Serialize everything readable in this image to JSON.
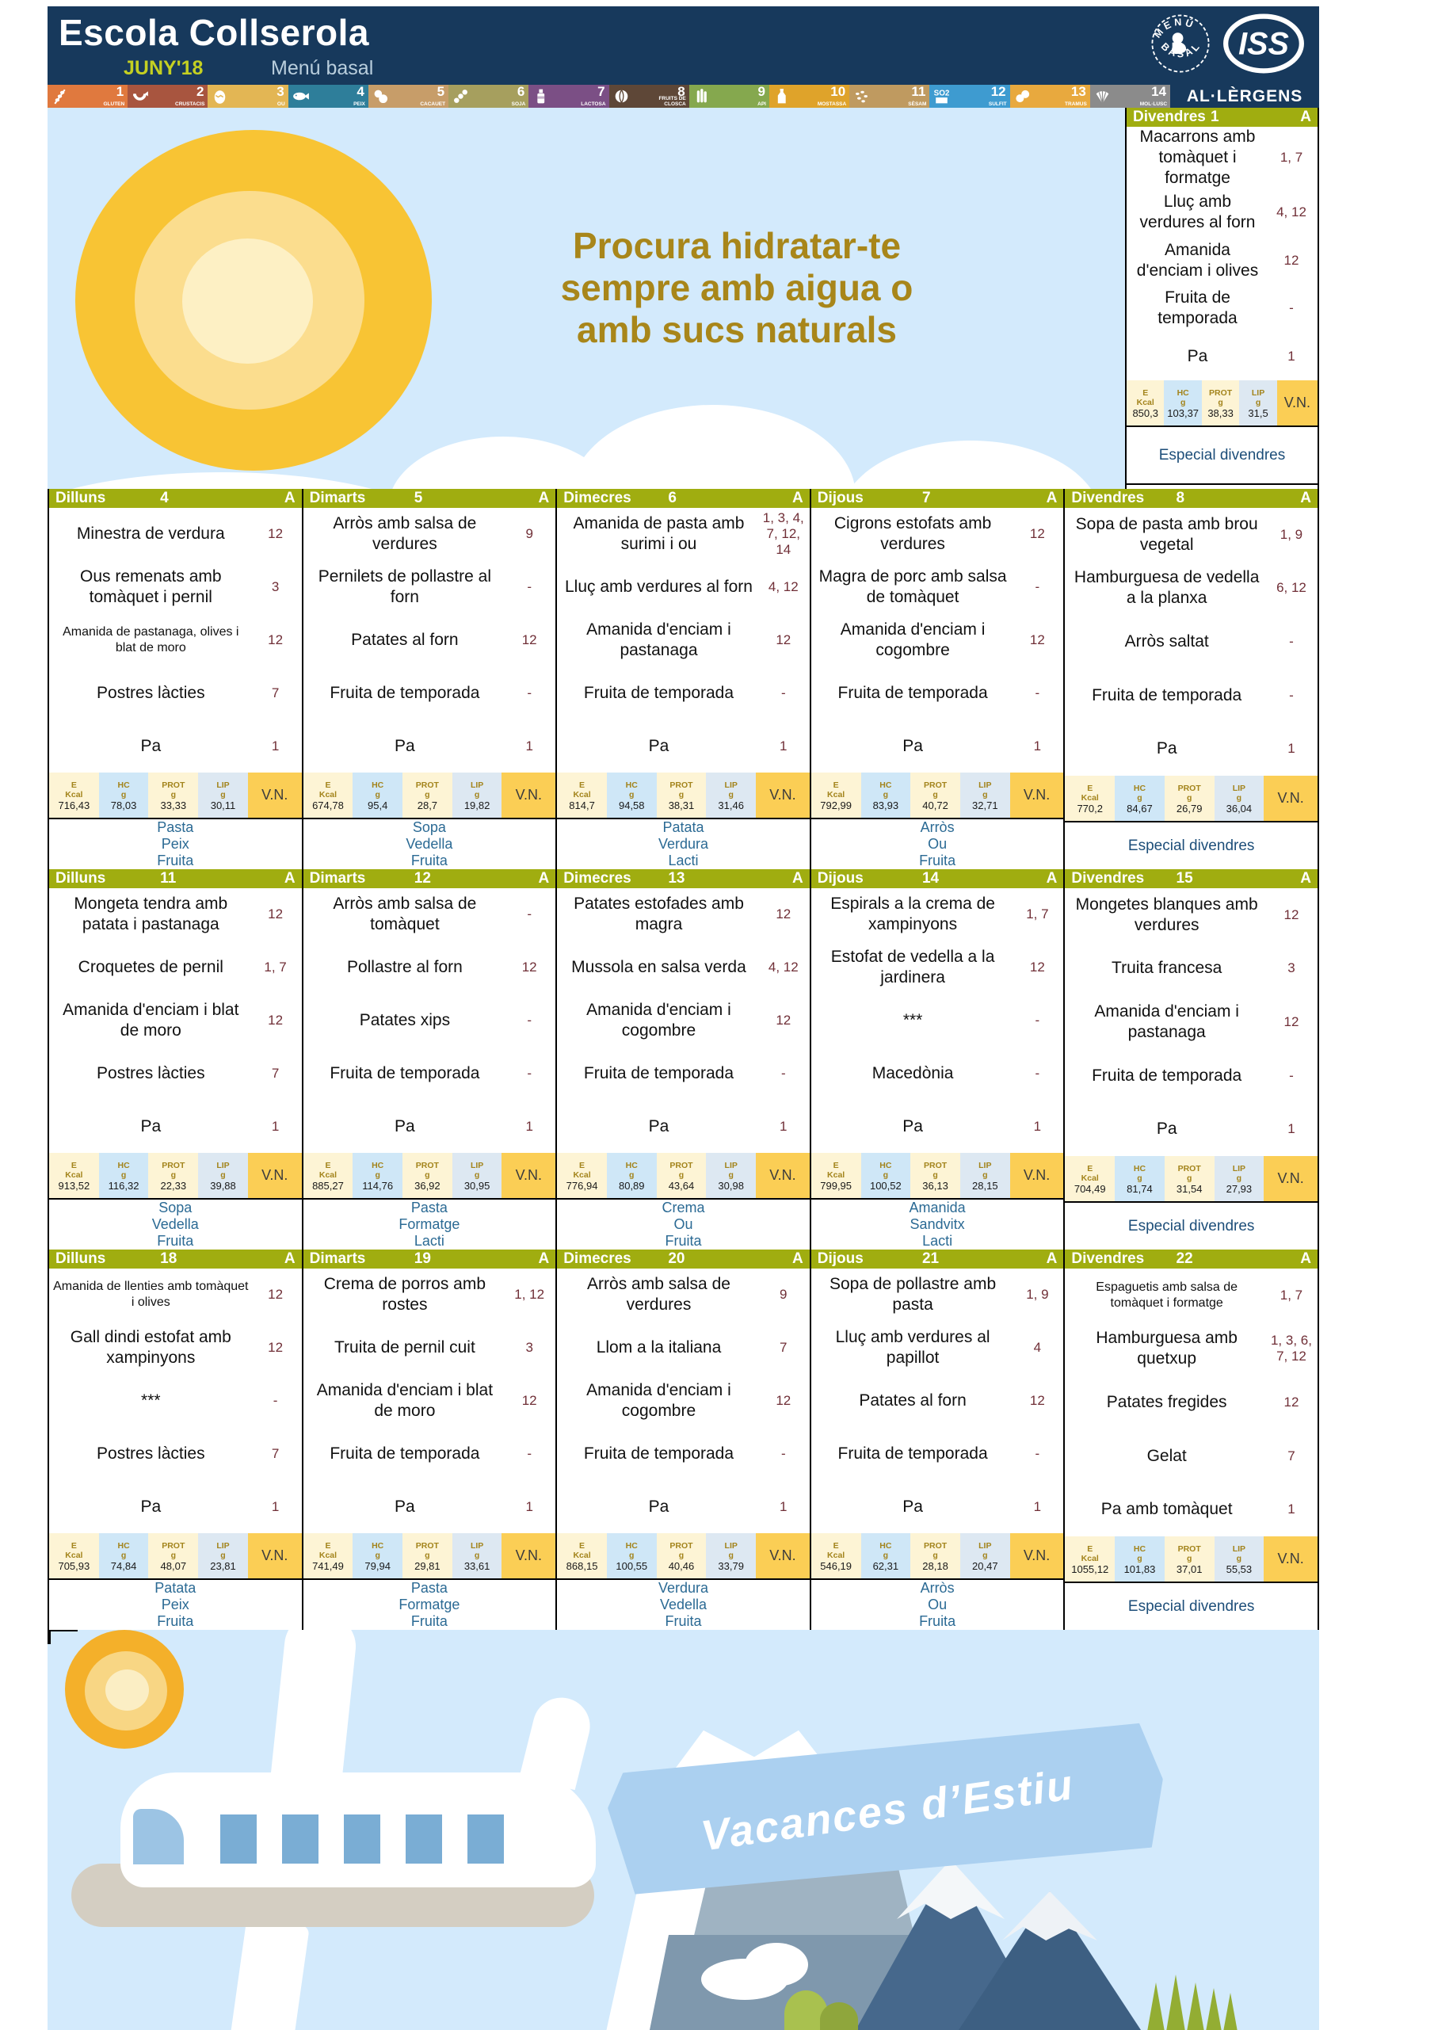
{
  "header": {
    "school": "Escola Collserola",
    "month": "JUNY'18",
    "menu_type": "Menú basal",
    "stamp_top": "MENÚ",
    "stamp_bottom": "BASAL",
    "brand": "ISS"
  },
  "palette": {
    "navy": "#17395c",
    "olive_header": "#a0ad10",
    "maroon_allergen": "#702f37",
    "footer_blue": "#2b6a94",
    "especial_blue": "#1d4e79",
    "vn_amber": "#fbce55",
    "cell_cream": "#fdf4d5",
    "cell_blue": "#cfe7f7",
    "sky": "#d3eafc",
    "hero_gold": "#a8861a"
  },
  "allergens": {
    "title": "AL·LÈRGENS",
    "items": [
      {
        "num": "1",
        "label": "GLUTEN",
        "icon": "wheat-icon",
        "color": "#e0793e"
      },
      {
        "num": "2",
        "label": "CRUSTACIS",
        "icon": "shrimp-icon",
        "color": "#a8553f"
      },
      {
        "num": "3",
        "label": "OU",
        "icon": "egg-icon",
        "color": "#e3b654"
      },
      {
        "num": "4",
        "label": "PEIX",
        "icon": "fish-icon",
        "color": "#2e7e9a"
      },
      {
        "num": "5",
        "label": "CACAUET",
        "icon": "peanut-icon",
        "color": "#c79d69"
      },
      {
        "num": "6",
        "label": "SOJA",
        "icon": "soy-icon",
        "color": "#a69f5e"
      },
      {
        "num": "7",
        "label": "LACTOSA",
        "icon": "milk-icon",
        "color": "#7b4f85"
      },
      {
        "num": "8",
        "label": "FRUITS DE CLOSCA",
        "icon": "nut-icon",
        "color": "#5e4737"
      },
      {
        "num": "9",
        "label": "API",
        "icon": "celery-icon",
        "color": "#85a84e"
      },
      {
        "num": "10",
        "label": "MOSTASSA",
        "icon": "mustard-icon",
        "color": "#dfa32a"
      },
      {
        "num": "11",
        "label": "SÈSAM",
        "icon": "sesame-icon",
        "color": "#bf9a60"
      },
      {
        "num": "12",
        "label": "SULFIT",
        "icon": "so2-icon",
        "color": "#3e9bd0"
      },
      {
        "num": "13",
        "label": "TRAMUS",
        "icon": "lupin-icon",
        "color": "#e8a93e"
      },
      {
        "num": "14",
        "label": "MOL·LUSC",
        "icon": "shell-icon",
        "color": "#8b8b8b"
      }
    ]
  },
  "hero": {
    "line1": "Procura hidratar-te",
    "line2": "sempre amb aigua o",
    "line3": "amb sucs naturals"
  },
  "vn_header": {
    "e": "E",
    "e_unit": "Kcal",
    "hc": "HC",
    "prot": "PROT",
    "lip": "LIP",
    "unit_g": "g",
    "vn": "V.N."
  },
  "friday1": {
    "day": "Divendres",
    "date": "1",
    "a": "A",
    "dishes": [
      {
        "name": "Macarrons amb tomàquet i formatge",
        "al": "1, 7"
      },
      {
        "name": "Lluç amb verdures al forn",
        "al": "4, 12"
      },
      {
        "name": "Amanida d'enciam i olives",
        "al": "12"
      },
      {
        "name": "Fruita de temporada",
        "al": "-"
      },
      {
        "name": "Pa",
        "al": "1"
      }
    ],
    "vn": {
      "e": "850,3",
      "hc": "103,37",
      "prot": "38,33",
      "lip": "31,5"
    },
    "footer": [
      "Especial divendres"
    ],
    "footer_special": true
  },
  "weeks": [
    {
      "days": [
        {
          "day": "Dilluns",
          "date": "4",
          "a": "A",
          "dishes": [
            {
              "name": "Minestra de verdura",
              "al": "12"
            },
            {
              "name": "Ous remenats amb tomàquet i pernil",
              "al": "3"
            },
            {
              "name": "Amanida de pastanaga, olives i blat de moro",
              "al": "12",
              "small": true
            },
            {
              "name": "Postres làcties",
              "al": "7"
            },
            {
              "name": "Pa",
              "al": "1"
            }
          ],
          "vn": {
            "e": "716,43",
            "hc": "78,03",
            "prot": "33,33",
            "lip": "30,11"
          },
          "footer": [
            "Pasta",
            "Peix",
            "Fruita"
          ]
        },
        {
          "day": "Dimarts",
          "date": "5",
          "a": "A",
          "dishes": [
            {
              "name": "Arròs amb salsa de verdures",
              "al": "9"
            },
            {
              "name": "Pernilets de pollastre al forn",
              "al": "-"
            },
            {
              "name": "Patates al forn",
              "al": "12"
            },
            {
              "name": "Fruita de temporada",
              "al": "-"
            },
            {
              "name": "Pa",
              "al": "1"
            }
          ],
          "vn": {
            "e": "674,78",
            "hc": "95,4",
            "prot": "28,7",
            "lip": "19,82"
          },
          "footer": [
            "Sopa",
            "Vedella",
            "Fruita"
          ]
        },
        {
          "day": "Dimecres",
          "date": "6",
          "a": "A",
          "dishes": [
            {
              "name": "Amanida de pasta amb surimi i ou",
              "al": "1, 3, 4, 7, 12, 14"
            },
            {
              "name": "Lluç amb verdures al forn",
              "al": "4, 12"
            },
            {
              "name": "Amanida d'enciam i pastanaga",
              "al": "12"
            },
            {
              "name": "Fruita de temporada",
              "al": "-"
            },
            {
              "name": "Pa",
              "al": "1"
            }
          ],
          "vn": {
            "e": "814,7",
            "hc": "94,58",
            "prot": "38,31",
            "lip": "31,46"
          },
          "footer": [
            "Patata",
            "Verdura",
            "Lacti"
          ]
        },
        {
          "day": "Dijous",
          "date": "7",
          "a": "A",
          "dishes": [
            {
              "name": "Cigrons estofats amb verdures",
              "al": "12"
            },
            {
              "name": "Magra de porc amb salsa de tomàquet",
              "al": "-"
            },
            {
              "name": "Amanida d'enciam i cogombre",
              "al": "12"
            },
            {
              "name": "Fruita de temporada",
              "al": "-"
            },
            {
              "name": "Pa",
              "al": "1"
            }
          ],
          "vn": {
            "e": "792,99",
            "hc": "83,93",
            "prot": "40,72",
            "lip": "32,71"
          },
          "footer": [
            "Arròs",
            "Ou",
            "Fruita"
          ]
        },
        {
          "day": "Divendres",
          "date": "8",
          "a": "A",
          "dishes": [
            {
              "name": "Sopa de pasta amb brou vegetal",
              "al": "1, 9"
            },
            {
              "name": "Hamburguesa de vedella a la planxa",
              "al": "6, 12"
            },
            {
              "name": "Arròs saltat",
              "al": "-"
            },
            {
              "name": "Fruita de temporada",
              "al": "-"
            },
            {
              "name": "Pa",
              "al": "1"
            }
          ],
          "vn": {
            "e": "770,2",
            "hc": "84,67",
            "prot": "26,79",
            "lip": "36,04"
          },
          "footer": [
            "Especial divendres"
          ],
          "footer_special": true
        }
      ]
    },
    {
      "days": [
        {
          "day": "Dilluns",
          "date": "11",
          "a": "A",
          "dishes": [
            {
              "name": "Mongeta tendra amb patata i pastanaga",
              "al": "12"
            },
            {
              "name": "Croquetes de pernil",
              "al": "1, 7"
            },
            {
              "name": "Amanida d'enciam i blat de moro",
              "al": "12"
            },
            {
              "name": "Postres làcties",
              "al": "7"
            },
            {
              "name": "Pa",
              "al": "1"
            }
          ],
          "vn": {
            "e": "913,52",
            "hc": "116,32",
            "prot": "22,33",
            "lip": "39,88"
          },
          "footer": [
            "Sopa",
            "Vedella",
            "Fruita"
          ]
        },
        {
          "day": "Dimarts",
          "date": "12",
          "a": "A",
          "dishes": [
            {
              "name": "Arròs amb salsa de tomàquet",
              "al": "-"
            },
            {
              "name": "Pollastre al forn",
              "al": "12"
            },
            {
              "name": "Patates xips",
              "al": "-"
            },
            {
              "name": "Fruita de temporada",
              "al": "-"
            },
            {
              "name": "Pa",
              "al": "1"
            }
          ],
          "vn": {
            "e": "885,27",
            "hc": "114,76",
            "prot": "36,92",
            "lip": "30,95"
          },
          "footer": [
            "Pasta",
            "Formatge",
            "Lacti"
          ]
        },
        {
          "day": "Dimecres",
          "date": "13",
          "a": "A",
          "dishes": [
            {
              "name": "Patates estofades amb magra",
              "al": "12"
            },
            {
              "name": "Mussola en salsa verda",
              "al": "4, 12"
            },
            {
              "name": "Amanida d'enciam i cogombre",
              "al": "12"
            },
            {
              "name": "Fruita de temporada",
              "al": "-"
            },
            {
              "name": "Pa",
              "al": "1"
            }
          ],
          "vn": {
            "e": "776,94",
            "hc": "80,89",
            "prot": "43,64",
            "lip": "30,98"
          },
          "footer": [
            "Crema",
            "Ou",
            "Fruita"
          ]
        },
        {
          "day": "Dijous",
          "date": "14",
          "a": "A",
          "dishes": [
            {
              "name": "Espirals a la crema de xampinyons",
              "al": "1, 7"
            },
            {
              "name": "Estofat de vedella a la jardinera",
              "al": "12"
            },
            {
              "name": "***",
              "al": "-"
            },
            {
              "name": "Macedònia",
              "al": "-"
            },
            {
              "name": "Pa",
              "al": "1"
            }
          ],
          "vn": {
            "e": "799,95",
            "hc": "100,52",
            "prot": "36,13",
            "lip": "28,15"
          },
          "footer": [
            "Amanida",
            "Sandvitx",
            "Lacti"
          ]
        },
        {
          "day": "Divendres",
          "date": "15",
          "a": "A",
          "dishes": [
            {
              "name": "Mongetes blanques amb verdures",
              "al": "12"
            },
            {
              "name": "Truita francesa",
              "al": "3"
            },
            {
              "name": "Amanida d'enciam i pastanaga",
              "al": "12"
            },
            {
              "name": "Fruita de temporada",
              "al": "-"
            },
            {
              "name": "Pa",
              "al": "1"
            }
          ],
          "vn": {
            "e": "704,49",
            "hc": "81,74",
            "prot": "31,54",
            "lip": "27,93"
          },
          "footer": [
            "Especial divendres"
          ],
          "footer_special": true
        }
      ]
    },
    {
      "days": [
        {
          "day": "Dilluns",
          "date": "18",
          "a": "A",
          "dishes": [
            {
              "name": "Amanida de llenties amb tomàquet i olives",
              "al": "12",
              "small": true
            },
            {
              "name": "Gall dindi estofat amb xampinyons",
              "al": "12"
            },
            {
              "name": "***",
              "al": "-"
            },
            {
              "name": "Postres làcties",
              "al": "7"
            },
            {
              "name": "Pa",
              "al": "1"
            }
          ],
          "vn": {
            "e": "705,93",
            "hc": "74,84",
            "prot": "48,07",
            "lip": "23,81"
          },
          "footer": [
            "Patata",
            "Peix",
            "Fruita"
          ]
        },
        {
          "day": "Dimarts",
          "date": "19",
          "a": "A",
          "dishes": [
            {
              "name": "Crema de porros amb rostes",
              "al": "1, 12"
            },
            {
              "name": "Truita de pernil cuit",
              "al": "3"
            },
            {
              "name": "Amanida d'enciam i blat de moro",
              "al": "12"
            },
            {
              "name": "Fruita de temporada",
              "al": "-"
            },
            {
              "name": "Pa",
              "al": "1"
            }
          ],
          "vn": {
            "e": "741,49",
            "hc": "79,94",
            "prot": "29,81",
            "lip": "33,61"
          },
          "footer": [
            "Pasta",
            "Formatge",
            "Fruita"
          ]
        },
        {
          "day": "Dimecres",
          "date": "20",
          "a": "A",
          "dishes": [
            {
              "name": "Arròs amb salsa de verdures",
              "al": "9"
            },
            {
              "name": "Llom a la italiana",
              "al": "7"
            },
            {
              "name": "Amanida d'enciam i cogombre",
              "al": "12"
            },
            {
              "name": "Fruita de temporada",
              "al": "-"
            },
            {
              "name": "Pa",
              "al": "1"
            }
          ],
          "vn": {
            "e": "868,15",
            "hc": "100,55",
            "prot": "40,46",
            "lip": "33,79"
          },
          "footer": [
            "Verdura",
            "Vedella",
            "Fruita"
          ]
        },
        {
          "day": "Dijous",
          "date": "21",
          "a": "A",
          "dishes": [
            {
              "name": "Sopa de pollastre amb pasta",
              "al": "1, 9"
            },
            {
              "name": "Lluç amb verdures al papillot",
              "al": "4"
            },
            {
              "name": "Patates al forn",
              "al": "12"
            },
            {
              "name": "Fruita de temporada",
              "al": "-"
            },
            {
              "name": "Pa",
              "al": "1"
            }
          ],
          "vn": {
            "e": "546,19",
            "hc": "62,31",
            "prot": "28,18",
            "lip": "20,47"
          },
          "footer": [
            "Arròs",
            "Ou",
            "Fruita"
          ]
        },
        {
          "day": "Divendres",
          "date": "22",
          "a": "A",
          "dishes": [
            {
              "name": "Espaguetis amb salsa de tomàquet i formatge",
              "al": "1, 7",
              "small": true
            },
            {
              "name": "Hamburguesa amb quetxup",
              "al": "1, 3, 6, 7, 12"
            },
            {
              "name": "Patates fregides",
              "al": "12"
            },
            {
              "name": "Gelat",
              "al": "7"
            },
            {
              "name": "Pa amb tomàquet",
              "al": "1"
            }
          ],
          "vn": {
            "e": "1055,12",
            "hc": "101,83",
            "prot": "37,01",
            "lip": "55,53"
          },
          "footer": [
            "Especial divendres"
          ],
          "footer_special": true
        }
      ]
    }
  ],
  "illustration": {
    "banner": "Vacances d’Estiu"
  }
}
